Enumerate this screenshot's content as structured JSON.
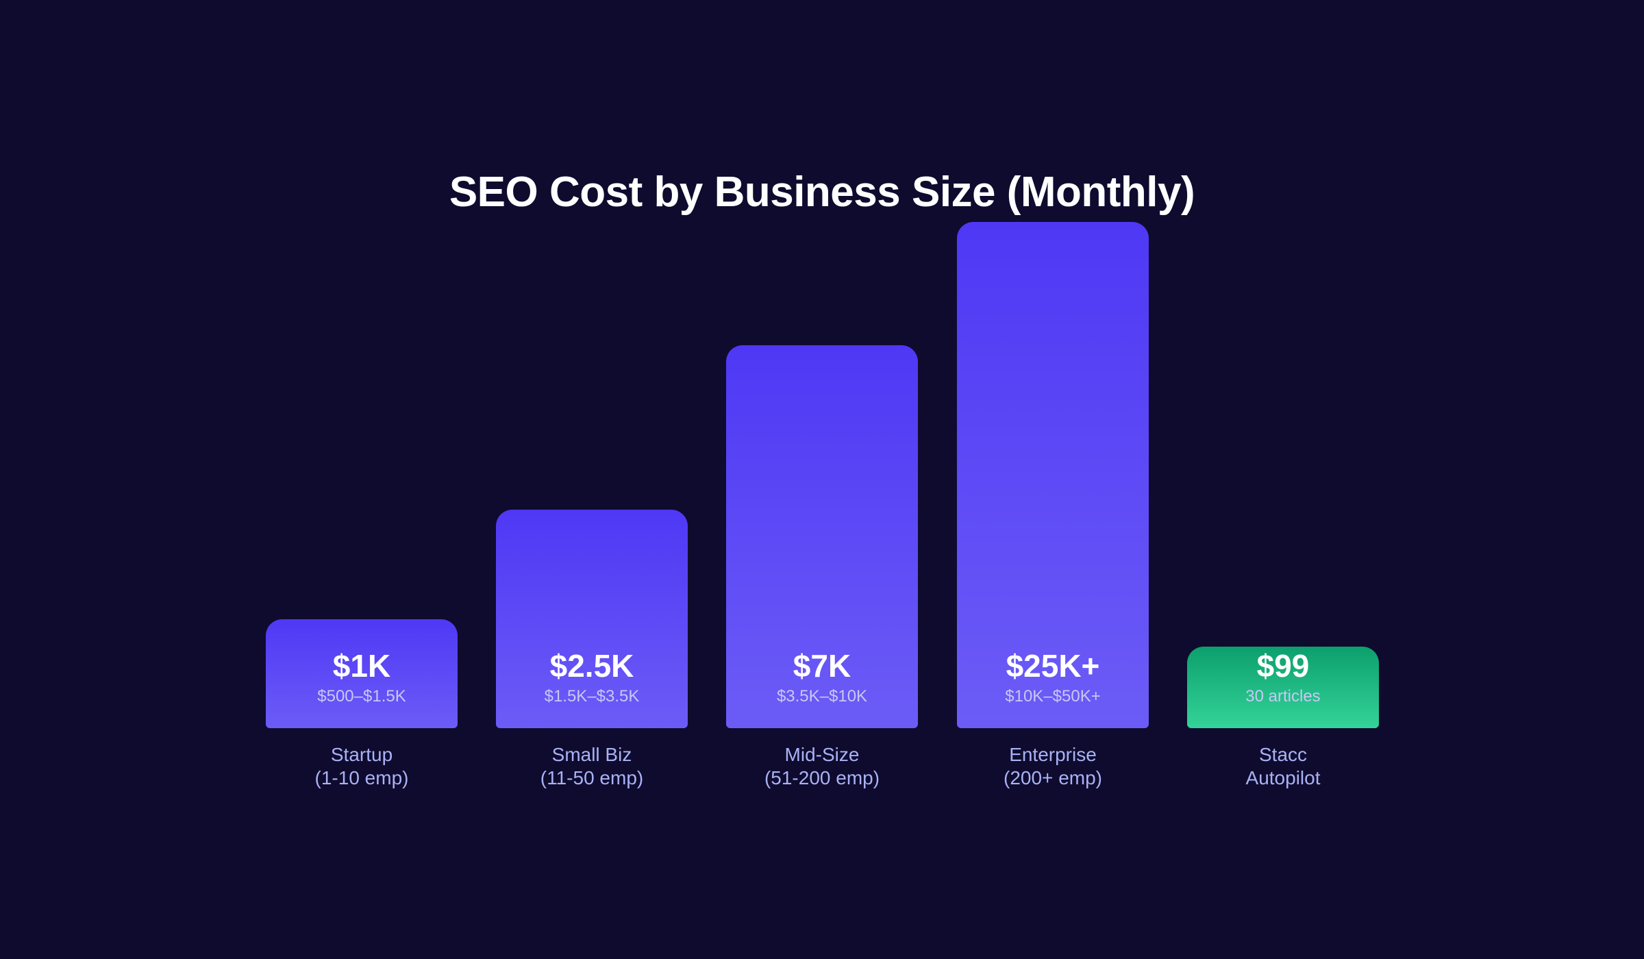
{
  "chart_data": {
    "type": "bar",
    "title": "SEO Cost by Business Size (Monthly)",
    "categories": [
      {
        "line1": "Startup",
        "line2": "(1-10 emp)"
      },
      {
        "line1": "Small Biz",
        "line2": "(11-50 emp)"
      },
      {
        "line1": "Mid-Size",
        "line2": "(51-200 emp)"
      },
      {
        "line1": "Enterprise",
        "line2": "(200+ emp)"
      },
      {
        "line1": "Stacc",
        "line2": "Autopilot"
      }
    ],
    "values": [
      1000,
      2500,
      7000,
      25000,
      99
    ],
    "value_labels": [
      "$1K",
      "$2.5K",
      "$7K",
      "$25K+",
      "$99"
    ],
    "sub_labels": [
      "$500–$1.5K",
      "$1.5K–$3.5K",
      "$3.5K–$10K",
      "$10K–$50K+",
      "30 articles"
    ],
    "colors": {
      "bar": "#5b45f5",
      "highlight": "#1fb982",
      "background": "#0f0b2e"
    },
    "grid": false,
    "axes_visible": false
  }
}
